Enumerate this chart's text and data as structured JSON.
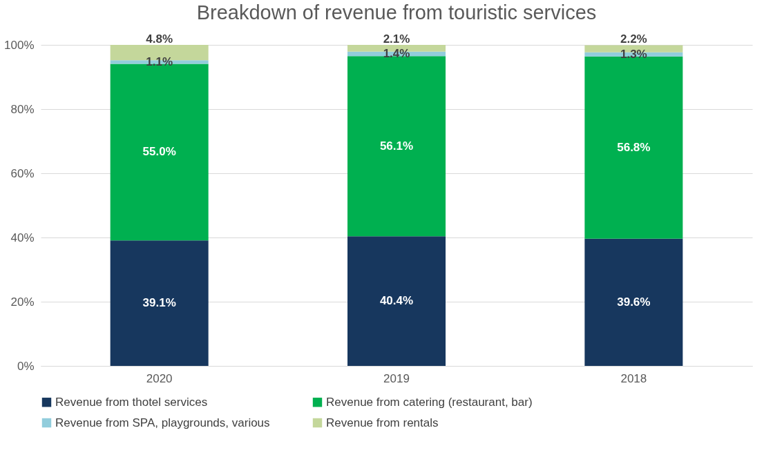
{
  "chart_data": {
    "type": "bar",
    "title": "Breakdown of revenue from touristic services",
    "categories": [
      "2020",
      "2019",
      "2018"
    ],
    "stacked": true,
    "series": [
      {
        "name": "Revenue from thotel services",
        "color": "#17375e",
        "values": [
          39.1,
          40.4,
          39.6
        ],
        "value_labels": [
          "39.1%",
          "40.4%",
          "39.6%"
        ]
      },
      {
        "name": "Revenue from catering (restaurant, bar)",
        "color": "#00b050",
        "values": [
          55.0,
          56.1,
          56.8
        ],
        "value_labels": [
          "55.0%",
          "56.1%",
          "56.8%"
        ]
      },
      {
        "name": "Revenue from SPA, playgrounds, various",
        "color": "#92cddc",
        "values": [
          1.1,
          1.4,
          1.3
        ],
        "value_labels": [
          "1.1%",
          "1.4%",
          "1.3%"
        ]
      },
      {
        "name": "Revenue from rentals",
        "color": "#c4d79b",
        "values": [
          4.8,
          2.1,
          2.2
        ],
        "value_labels": [
          "4.8%",
          "2.1%",
          "2.2%"
        ]
      }
    ],
    "ylim": [
      0,
      100
    ],
    "yticks": [
      {
        "value": 0,
        "label": "0%"
      },
      {
        "value": 20,
        "label": "20%"
      },
      {
        "value": 40,
        "label": "40%"
      },
      {
        "value": 60,
        "label": "60%"
      },
      {
        "value": 80,
        "label": "80%"
      },
      {
        "value": 100,
        "label": "100%"
      }
    ],
    "grid": "y",
    "legend": "bottom"
  }
}
